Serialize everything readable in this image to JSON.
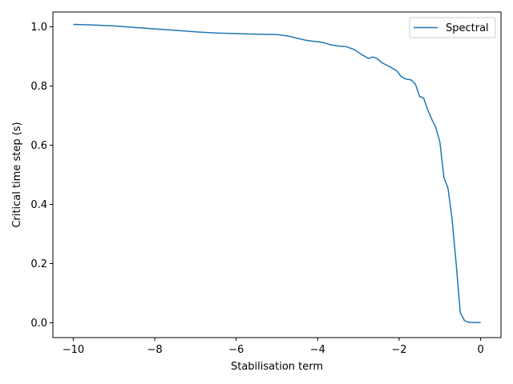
{
  "chart_data": {
    "type": "line",
    "title": "",
    "xlabel": "Stabilisation term",
    "ylabel": "Critical time step (s)",
    "xlim": [
      -10.5,
      0.5
    ],
    "ylim": [
      -0.05,
      1.05
    ],
    "xticks": [
      -10,
      -8,
      -6,
      -4,
      -2,
      0
    ],
    "xtick_labels": [
      "−10",
      "−8",
      "−6",
      "−4",
      "−2",
      "0"
    ],
    "yticks": [
      0.0,
      0.2,
      0.4,
      0.6,
      0.8,
      1.0
    ],
    "ytick_labels": [
      "0.0",
      "0.2",
      "0.4",
      "0.6",
      "0.8",
      "1.0"
    ],
    "grid": false,
    "legend": {
      "position": "top-right",
      "entries": [
        "Spectral"
      ]
    },
    "series": [
      {
        "name": "Spectral",
        "color": "#1f77b4",
        "x": [
          -10,
          -9.5,
          -9,
          -8.5,
          -8,
          -7.5,
          -7,
          -6.5,
          -6,
          -5.5,
          -5.1,
          -5,
          -4.7,
          -4.5,
          -4.3,
          -4.1,
          -3.9,
          -3.7,
          -3.5,
          -3.3,
          -3.1,
          -2.9,
          -2.75,
          -2.65,
          -2.55,
          -2.4,
          -2.2,
          -2.05,
          -1.95,
          -1.85,
          -1.75,
          -1.7,
          -1.6,
          -1.5,
          -1.4,
          -1.3,
          -1.2,
          -1.1,
          -1.0,
          -0.9,
          -0.8,
          -0.7,
          -0.6,
          -0.5,
          -0.4,
          -0.3,
          -0.2,
          -0.1,
          0
        ],
        "y": [
          1.008,
          1.006,
          1.003,
          0.998,
          0.993,
          0.988,
          0.983,
          0.979,
          0.977,
          0.975,
          0.974,
          0.974,
          0.968,
          0.961,
          0.955,
          0.951,
          0.948,
          0.94,
          0.935,
          0.933,
          0.923,
          0.905,
          0.893,
          0.898,
          0.893,
          0.877,
          0.863,
          0.85,
          0.832,
          0.824,
          0.822,
          0.82,
          0.806,
          0.765,
          0.76,
          0.72,
          0.688,
          0.66,
          0.61,
          0.49,
          0.455,
          0.35,
          0.2,
          0.035,
          0.008,
          0.002,
          0.001,
          0.001,
          0.001
        ]
      }
    ]
  }
}
